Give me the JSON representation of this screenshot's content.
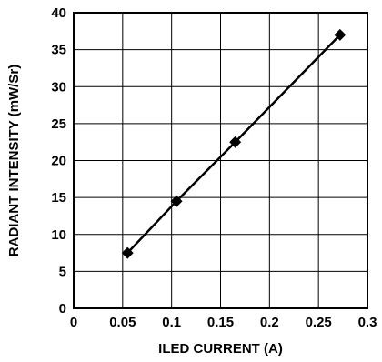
{
  "chart_data": {
    "type": "line",
    "xlabel": "ILED CURRENT (A)",
    "ylabel": "RADIANT INTENSITY (mW/Sr)",
    "xlim": [
      0,
      0.3
    ],
    "ylim": [
      0,
      40
    ],
    "xticks": [
      "0",
      "0.05",
      "0.1",
      "0.15",
      "0.2",
      "0.25",
      "0.3"
    ],
    "yticks": [
      "0",
      "5",
      "10",
      "15",
      "20",
      "25",
      "30",
      "35",
      "40"
    ],
    "grid": true,
    "series": [
      {
        "marker": "diamond",
        "color": "#000000",
        "x": [
          0.055,
          0.105,
          0.165,
          0.272
        ],
        "y": [
          7.5,
          14.5,
          22.5,
          37
        ]
      }
    ]
  }
}
